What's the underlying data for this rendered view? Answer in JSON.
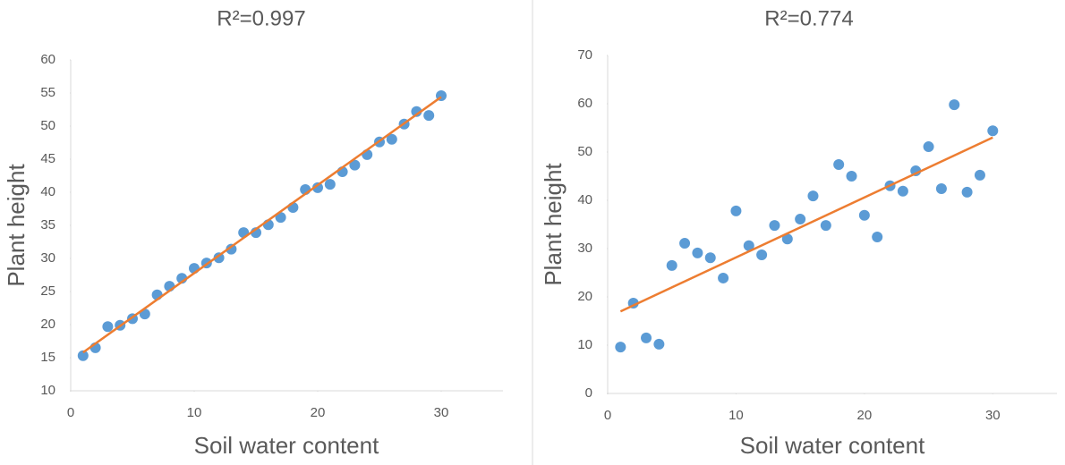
{
  "chart_data": [
    {
      "type": "scatter",
      "title": "R²=0.997",
      "x_label": "Soil water content",
      "y_label": "Plant height",
      "x": [
        1,
        2,
        3,
        4,
        5,
        6,
        7,
        8,
        9,
        10,
        11,
        12,
        13,
        14,
        15,
        16,
        17,
        18,
        19,
        20,
        21,
        22,
        23,
        24,
        25,
        26,
        27,
        28,
        29,
        30
      ],
      "y": [
        15.3,
        16.5,
        19.7,
        19.9,
        20.9,
        21.6,
        24.5,
        25.8,
        27.0,
        28.5,
        29.3,
        30.1,
        31.4,
        33.9,
        33.9,
        35.1,
        36.2,
        37.7,
        40.4,
        40.7,
        41.2,
        43.1,
        44.1,
        45.7,
        47.6,
        48.0,
        50.3,
        52.2,
        51.6,
        54.6
      ],
      "color": "#5b9bd5",
      "trendline": {
        "x": [
          1,
          30
        ],
        "y": [
          15.8,
          54.4
        ],
        "color": "#ed7d31"
      },
      "xlim": [
        0,
        35
      ],
      "xticks": [
        0,
        10,
        20,
        30
      ],
      "ylim": [
        10,
        60
      ],
      "yticks": [
        10,
        15,
        20,
        25,
        30,
        35,
        40,
        45,
        50,
        55,
        60
      ]
    },
    {
      "type": "scatter",
      "title": "R²=0.774",
      "x_label": "Soil water content",
      "y_label": "Plant height",
      "x": [
        1,
        2,
        3,
        4,
        5,
        6,
        7,
        8,
        9,
        10,
        11,
        12,
        13,
        14,
        15,
        16,
        17,
        18,
        19,
        20,
        21,
        22,
        23,
        24,
        25,
        26,
        27,
        28,
        29,
        30
      ],
      "y": [
        9.6,
        18.7,
        11.5,
        10.2,
        26.5,
        31.1,
        29.1,
        28.1,
        23.9,
        37.8,
        30.6,
        28.7,
        34.8,
        32.0,
        36.1,
        40.9,
        34.8,
        47.4,
        45.0,
        36.9,
        32.4,
        43.0,
        41.9,
        46.1,
        51.1,
        42.4,
        59.8,
        41.7,
        45.2,
        54.4
      ],
      "color": "#5b9bd5",
      "trendline": {
        "x": [
          1,
          30
        ],
        "y": [
          17.0,
          53.0
        ],
        "color": "#ed7d31"
      },
      "xlim": [
        0,
        35
      ],
      "xticks": [
        0,
        10,
        20,
        30
      ],
      "ylim": [
        0,
        70
      ],
      "yticks": [
        0,
        10,
        20,
        30,
        40,
        50,
        60,
        70
      ]
    }
  ]
}
